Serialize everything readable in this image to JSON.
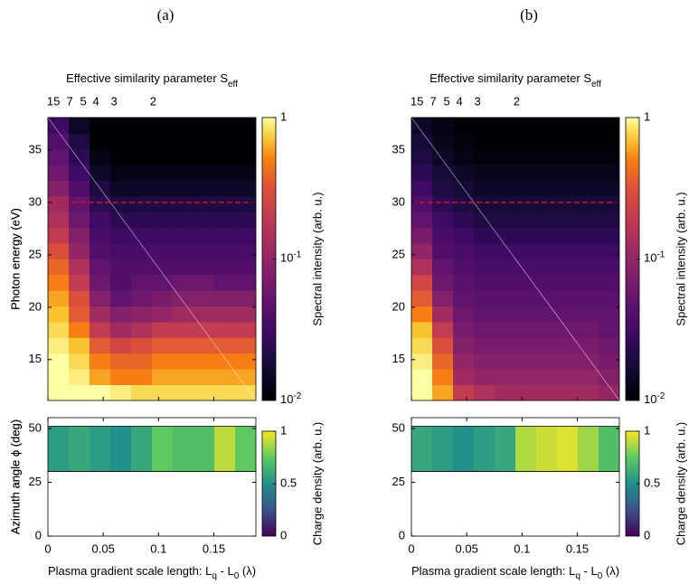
{
  "chart_data": [
    {
      "type": "heatmap",
      "panel_label": "(a)",
      "x2label": [
        "Effective similarity parameter S",
        "eff"
      ],
      "x2ticks": [
        {
          "value": 0.005,
          "label": "15"
        },
        {
          "value": 0.0197,
          "label": "7"
        },
        {
          "value": 0.032,
          "label": "5"
        },
        {
          "value": 0.0434,
          "label": "4"
        },
        {
          "value": 0.0598,
          "label": "3"
        },
        {
          "value": 0.0951,
          "label": "2"
        }
      ],
      "ylabel": "Photon energy (eV)",
      "xlim": [
        0,
        0.188
      ],
      "ylim": [
        11.1,
        38.1
      ],
      "xticks": [
        0,
        0.05,
        0.1,
        0.15
      ],
      "yticks": [
        15,
        20,
        25,
        30,
        35
      ],
      "hline": {
        "value": 30,
        "color": "#c8102e"
      },
      "x": [
        0.0094,
        0.0282,
        0.047,
        0.0658,
        0.0846,
        0.1034,
        0.1222,
        0.141,
        0.1598,
        0.1786
      ],
      "y": [
        11.85,
        13.35,
        14.85,
        16.35,
        17.85,
        19.35,
        20.85,
        22.35,
        23.85,
        25.35,
        26.85,
        28.35,
        29.85,
        31.35,
        32.85,
        34.35,
        35.85,
        37.35
      ],
      "z": [
        [
          1,
          1,
          1,
          0.9,
          0.8,
          0.8,
          0.8,
          0.8,
          0.8,
          0.8
        ],
        [
          1,
          0.9,
          0.6,
          0.5,
          0.5,
          0.6,
          0.6,
          0.6,
          0.6,
          0.6
        ],
        [
          1,
          0.8,
          0.5,
          0.4,
          0.4,
          0.5,
          0.5,
          0.5,
          0.5,
          0.5
        ],
        [
          0.9,
          0.7,
          0.35,
          0.25,
          0.3,
          0.35,
          0.35,
          0.35,
          0.35,
          0.35
        ],
        [
          0.8,
          0.5,
          0.2,
          0.12,
          0.15,
          0.2,
          0.2,
          0.2,
          0.2,
          0.2
        ],
        [
          0.7,
          0.35,
          0.12,
          0.08,
          0.09,
          0.1,
          0.12,
          0.12,
          0.12,
          0.12
        ],
        [
          0.6,
          0.3,
          0.08,
          0.05,
          0.06,
          0.07,
          0.08,
          0.08,
          0.08,
          0.08
        ],
        [
          0.5,
          0.2,
          0.06,
          0.04,
          0.05,
          0.05,
          0.06,
          0.06,
          0.05,
          0.05
        ],
        [
          0.4,
          0.15,
          0.05,
          0.04,
          0.04,
          0.04,
          0.04,
          0.04,
          0.04,
          0.04
        ],
        [
          0.3,
          0.1,
          0.04,
          0.035,
          0.035,
          0.035,
          0.035,
          0.035,
          0.035,
          0.035
        ],
        [
          0.2,
          0.08,
          0.035,
          0.03,
          0.03,
          0.03,
          0.03,
          0.03,
          0.03,
          0.03
        ],
        [
          0.15,
          0.06,
          0.03,
          0.025,
          0.025,
          0.025,
          0.025,
          0.025,
          0.025,
          0.025
        ],
        [
          0.12,
          0.05,
          0.025,
          0.02,
          0.02,
          0.02,
          0.02,
          0.02,
          0.02,
          0.02
        ],
        [
          0.08,
          0.04,
          0.02,
          0.015,
          0.015,
          0.015,
          0.015,
          0.015,
          0.015,
          0.015
        ],
        [
          0.06,
          0.03,
          0.015,
          0.012,
          0.012,
          0.012,
          0.012,
          0.012,
          0.012,
          0.012
        ],
        [
          0.05,
          0.025,
          0.012,
          0.01,
          0.01,
          0.01,
          0.01,
          0.01,
          0.01,
          0.01
        ],
        [
          0.04,
          0.02,
          0.01,
          0.01,
          0.01,
          0.01,
          0.01,
          0.01,
          0.01,
          0.01
        ],
        [
          0.03,
          0.015,
          0.01,
          0.01,
          0.01,
          0.01,
          0.01,
          0.01,
          0.01,
          0.01
        ]
      ],
      "colorbar": {
        "scale": "log",
        "colormap": "inferno",
        "lim": [
          0.01,
          1
        ],
        "label": "Spectral intensity (arb. u.)",
        "ticks": [
          {
            "value": 0.01,
            "label": [
              "10",
              "-2"
            ]
          },
          {
            "value": 0.1,
            "label": [
              "10",
              "-1"
            ]
          },
          1
        ]
      }
    },
    {
      "type": "band",
      "xlabel": [
        "Plasma gradient scale length: L",
        "q",
        " - L",
        "0",
        " (λ)"
      ],
      "ylabel": "Azimuth angle ϕ (deg)",
      "xlim": [
        0,
        0.188
      ],
      "ylim": [
        0,
        55
      ],
      "xticks": [
        0,
        0.05,
        0.1,
        0.15
      ],
      "yticks": [
        0,
        25,
        50
      ],
      "phi_range": [
        30,
        51
      ],
      "x": [
        0.0094,
        0.0282,
        0.047,
        0.0658,
        0.0846,
        0.1034,
        0.1222,
        0.141,
        0.1598,
        0.1786
      ],
      "values": [
        0.55,
        0.6,
        0.55,
        0.5,
        0.6,
        0.75,
        0.7,
        0.7,
        0.9,
        0.75
      ],
      "colorbar": {
        "scale": "linear",
        "colormap": "viridis",
        "lim": [
          0,
          1
        ],
        "label": "Charge density (arb. u.)",
        "ticks": [
          0,
          0.5,
          1
        ]
      }
    },
    {
      "type": "heatmap",
      "panel_label": "(b)",
      "x2label": [
        "Effective similarity parameter S",
        "eff"
      ],
      "x2ticks": [
        {
          "value": 0.005,
          "label": "15"
        },
        {
          "value": 0.0197,
          "label": "7"
        },
        {
          "value": 0.032,
          "label": "5"
        },
        {
          "value": 0.0434,
          "label": "4"
        },
        {
          "value": 0.0598,
          "label": "3"
        },
        {
          "value": 0.0951,
          "label": "2"
        }
      ],
      "ylabel": "Photon energy (eV)",
      "xlim": [
        0,
        0.188
      ],
      "ylim": [
        11.1,
        38.1
      ],
      "xticks": [
        0,
        0.05,
        0.1,
        0.15
      ],
      "yticks": [
        15,
        20,
        25,
        30,
        35
      ],
      "hline": {
        "value": 30,
        "color": "#c8102e"
      },
      "x": [
        0.0094,
        0.0282,
        0.047,
        0.0658,
        0.0846,
        0.1034,
        0.1222,
        0.141,
        0.1598,
        0.1786
      ],
      "y": [
        11.85,
        13.35,
        14.85,
        16.35,
        17.85,
        19.35,
        20.85,
        22.35,
        23.85,
        25.35,
        26.85,
        28.35,
        29.85,
        31.35,
        32.85,
        34.35,
        35.85,
        37.35
      ],
      "z": [
        [
          1,
          0.6,
          0.2,
          0.15,
          0.12,
          0.12,
          0.12,
          0.12,
          0.12,
          0.1
        ],
        [
          1,
          0.5,
          0.12,
          0.1,
          0.1,
          0.1,
          0.1,
          0.1,
          0.1,
          0.08
        ],
        [
          0.9,
          0.4,
          0.1,
          0.08,
          0.08,
          0.08,
          0.08,
          0.08,
          0.08,
          0.07
        ],
        [
          0.8,
          0.3,
          0.08,
          0.07,
          0.07,
          0.07,
          0.07,
          0.07,
          0.07,
          0.06
        ],
        [
          0.7,
          0.2,
          0.07,
          0.06,
          0.06,
          0.06,
          0.06,
          0.06,
          0.06,
          0.05
        ],
        [
          0.5,
          0.12,
          0.06,
          0.05,
          0.05,
          0.05,
          0.05,
          0.05,
          0.05,
          0.05
        ],
        [
          0.35,
          0.08,
          0.05,
          0.045,
          0.045,
          0.045,
          0.045,
          0.045,
          0.045,
          0.045
        ],
        [
          0.25,
          0.06,
          0.045,
          0.04,
          0.04,
          0.04,
          0.04,
          0.04,
          0.04,
          0.04
        ],
        [
          0.15,
          0.05,
          0.04,
          0.035,
          0.035,
          0.035,
          0.035,
          0.035,
          0.035,
          0.035
        ],
        [
          0.1,
          0.04,
          0.035,
          0.03,
          0.03,
          0.03,
          0.03,
          0.03,
          0.03,
          0.03
        ],
        [
          0.07,
          0.035,
          0.03,
          0.025,
          0.025,
          0.025,
          0.025,
          0.025,
          0.025,
          0.025
        ],
        [
          0.05,
          0.03,
          0.025,
          0.02,
          0.02,
          0.02,
          0.02,
          0.02,
          0.02,
          0.02
        ],
        [
          0.04,
          0.025,
          0.02,
          0.018,
          0.018,
          0.018,
          0.018,
          0.018,
          0.018,
          0.018
        ],
        [
          0.03,
          0.02,
          0.018,
          0.015,
          0.015,
          0.015,
          0.015,
          0.015,
          0.015,
          0.015
        ],
        [
          0.025,
          0.018,
          0.015,
          0.013,
          0.013,
          0.013,
          0.013,
          0.013,
          0.013,
          0.013
        ],
        [
          0.02,
          0.015,
          0.012,
          0.011,
          0.011,
          0.011,
          0.011,
          0.011,
          0.011,
          0.011
        ],
        [
          0.018,
          0.013,
          0.011,
          0.01,
          0.01,
          0.01,
          0.01,
          0.01,
          0.01,
          0.01
        ],
        [
          0.015,
          0.012,
          0.01,
          0.01,
          0.01,
          0.01,
          0.01,
          0.01,
          0.01,
          0.01
        ]
      ],
      "colorbar": {
        "scale": "log",
        "colormap": "inferno",
        "lim": [
          0.01,
          1
        ],
        "label": "Spectral intensity (arb. u.)",
        "ticks": [
          {
            "value": 0.01,
            "label": [
              "10",
              "-2"
            ]
          },
          {
            "value": 0.1,
            "label": [
              "10",
              "-1"
            ]
          },
          1
        ]
      }
    },
    {
      "type": "band",
      "xlabel": [
        "Plasma gradient scale length: L",
        "q",
        " - L",
        "0",
        " (λ)"
      ],
      "ylabel": "Azimuth angle ϕ (deg)",
      "xlim": [
        0,
        0.188
      ],
      "ylim": [
        0,
        55
      ],
      "xticks": [
        0,
        0.05,
        0.1,
        0.15
      ],
      "yticks": [
        0,
        25,
        50
      ],
      "phi_range": [
        30,
        51
      ],
      "x": [
        0.0094,
        0.0282,
        0.047,
        0.0658,
        0.0846,
        0.1034,
        0.1222,
        0.141,
        0.1598,
        0.1786
      ],
      "values": [
        0.6,
        0.55,
        0.5,
        0.55,
        0.6,
        0.88,
        0.92,
        0.95,
        0.85,
        0.7
      ],
      "colorbar": {
        "scale": "linear",
        "colormap": "viridis",
        "lim": [
          0,
          1
        ],
        "label": "Charge density (arb. u.)",
        "ticks": [
          0,
          0.5,
          1
        ]
      }
    }
  ]
}
